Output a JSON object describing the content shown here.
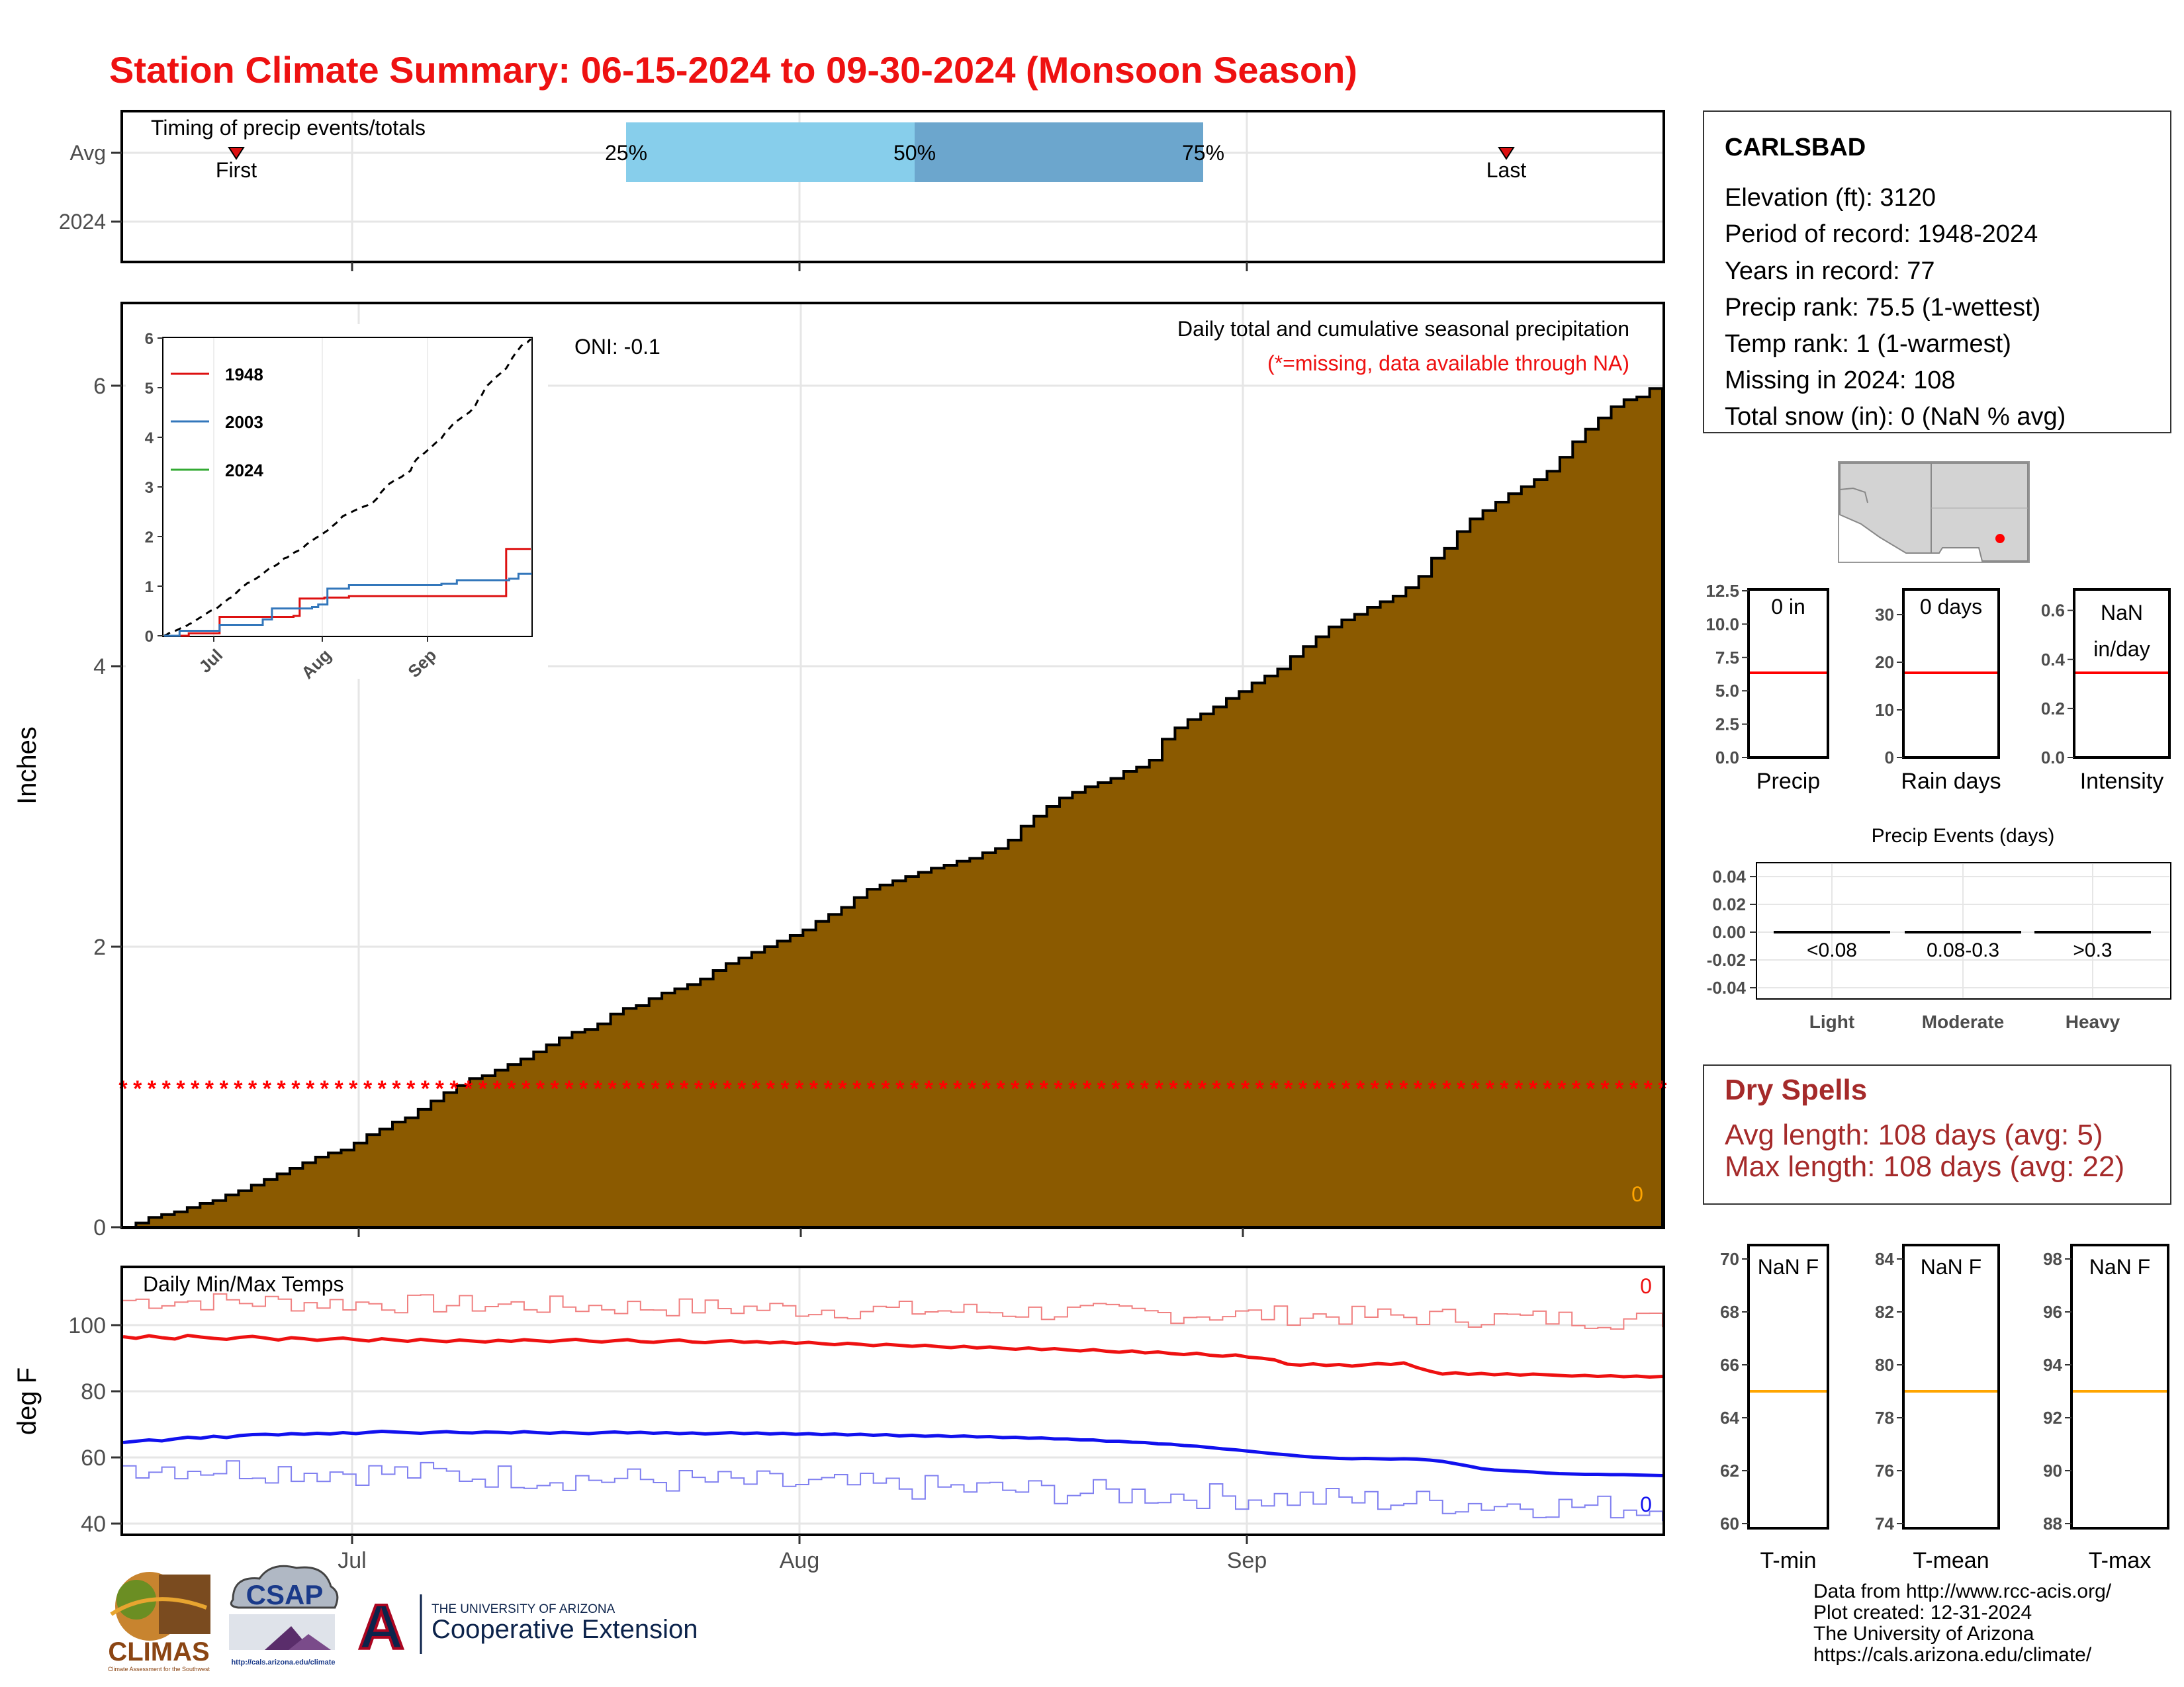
{
  "title": "Station Climate Summary: 06-15-2024 to 09-30-2024 (Monsoon Season)",
  "colors": {
    "title": "#ee1111",
    "precip_fill": "#8B5A00",
    "quartile_light": "#87CEEB",
    "quartile_dark": "#6CA6CD",
    "max_temp": "#ee1111",
    "min_temp": "#1111ee",
    "dry_spells": "#a52a2a",
    "climo_line": "#ff0000",
    "temp_climo_line": "#FFA500",
    "missing_marker": "#ff0000"
  },
  "timing": {
    "label": "Timing of precip events/totals",
    "rows": [
      "Avg",
      "2024"
    ],
    "first_label": "First",
    "last_label": "Last",
    "q25": "25%",
    "q50": "50%",
    "q75": "75%"
  },
  "x_axis": {
    "ticks": [
      "Jul",
      "Aug",
      "Sep"
    ]
  },
  "precip_panel": {
    "ylabel": "Inches",
    "yticks": [
      "0",
      "2",
      "4",
      "6"
    ],
    "oni": "ONI: -0.1",
    "caption": "Daily total and cumulative seasonal precipitation",
    "missing_note": "(*=missing, data available through NA)",
    "current_total": "0",
    "missing_marker": "*"
  },
  "inset": {
    "yticks": [
      "0",
      "1",
      "2",
      "3",
      "4",
      "5",
      "6"
    ],
    "xticks": [
      "Jul",
      "Aug",
      "Sep"
    ],
    "legend": [
      {
        "label": "1948",
        "color": "#dd1111"
      },
      {
        "label": "2003",
        "color": "#3377bb"
      },
      {
        "label": "2024",
        "color": "#33aa33"
      }
    ]
  },
  "temp_panel": {
    "ylabel": "deg F",
    "title": "Daily Min/Max Temps",
    "yticks": [
      "40",
      "60",
      "80",
      "100"
    ],
    "max_marker": "0",
    "min_marker": "0"
  },
  "station": {
    "name": "CARLSBAD",
    "lines": [
      "Elevation (ft): 3120",
      "Period of record: 1948-2024",
      "Years in record: 77",
      "Precip rank: 75.5 (1-wettest)",
      "Temp rank: 1 (1-warmest)",
      "Missing in 2024: 108",
      "Total snow (in): 0 (NaN % avg)"
    ]
  },
  "mini_bars": [
    {
      "label": "Precip",
      "value_label": "0 in",
      "ticks": [
        "0.0",
        "2.5",
        "5.0",
        "7.5",
        "10.0",
        "12.5"
      ],
      "climo": 6.3,
      "ymax": 12.5
    },
    {
      "label": "Rain days",
      "value_label": "0 days",
      "ticks": [
        "0",
        "10",
        "20",
        "30"
      ],
      "climo": 18.2,
      "ymax": 35
    },
    {
      "label": "Intensity",
      "value_label": "NaN",
      "value_label2": "in/day",
      "ticks": [
        "0.0",
        "0.2",
        "0.4",
        "0.6"
      ],
      "climo": 0.35,
      "ymax": 0.68
    }
  ],
  "precip_events": {
    "title": "Precip Events (days)",
    "yticks": [
      "0.04",
      "0.02",
      "0.00",
      "-0.02",
      "-0.04"
    ],
    "bins": [
      "<0.08",
      "0.08-0.3",
      ">0.3"
    ],
    "categories": [
      "Light",
      "Moderate",
      "Heavy"
    ],
    "values": [
      0,
      0,
      0
    ]
  },
  "dry_spells": {
    "title": "Dry Spells",
    "avg": "Avg length: 108 days (avg: 5)",
    "max": "Max length: 108 days (avg: 22)"
  },
  "temp_bars": [
    {
      "label": "T-min",
      "value_label": "NaN F",
      "ticks": [
        "60",
        "62",
        "64",
        "66",
        "68",
        "70"
      ],
      "min": 60,
      "max": 70,
      "climo": 65.2
    },
    {
      "label": "T-mean",
      "value_label": "NaN F",
      "ticks": [
        "74",
        "76",
        "78",
        "80",
        "82",
        "84"
      ],
      "min": 74,
      "max": 84,
      "climo": 79.2
    },
    {
      "label": "T-max",
      "value_label": "NaN F",
      "ticks": [
        "88",
        "90",
        "92",
        "94",
        "96",
        "98"
      ],
      "min": 88,
      "max": 98,
      "climo": 93.2
    }
  ],
  "footer": [
    "Data from http://www.rcc-acis.org/",
    "Plot created: 12-31-2024",
    "The University of Arizona",
    "https://cals.arizona.edu/climate/"
  ],
  "logos": {
    "climas": "CLIMAS",
    "climas_sub": "Climate Assessment for the Southwest",
    "csap": "CSAP",
    "csap_url": "http://cals.arizona.edu/climate",
    "ua_letter": "A",
    "ua_line1": "THE UNIVERSITY OF ARIZONA",
    "ua_line2": "Cooperative Extension"
  },
  "chart_data": {
    "type": "area",
    "title": "Daily total and cumulative seasonal precipitation",
    "ylabel": "Inches",
    "ylim": [
      0,
      6.5
    ],
    "x_start": "06-15-2024",
    "x_end": "09-30-2024",
    "cumulative_climatology_in": [
      0.0,
      0.03,
      0.07,
      0.09,
      0.11,
      0.14,
      0.17,
      0.19,
      0.23,
      0.26,
      0.3,
      0.34,
      0.38,
      0.42,
      0.46,
      0.5,
      0.53,
      0.55,
      0.6,
      0.66,
      0.7,
      0.75,
      0.78,
      0.84,
      0.9,
      0.96,
      1.01,
      1.06,
      1.08,
      1.12,
      1.16,
      1.2,
      1.25,
      1.3,
      1.35,
      1.39,
      1.41,
      1.45,
      1.52,
      1.56,
      1.58,
      1.63,
      1.67,
      1.7,
      1.73,
      1.77,
      1.83,
      1.88,
      1.92,
      1.96,
      2.0,
      2.04,
      2.08,
      2.12,
      2.18,
      2.23,
      2.28,
      2.35,
      2.41,
      2.44,
      2.47,
      2.5,
      2.53,
      2.56,
      2.58,
      2.61,
      2.63,
      2.67,
      2.7,
      2.76,
      2.86,
      2.93,
      3.0,
      3.06,
      3.1,
      3.14,
      3.17,
      3.2,
      3.25,
      3.28,
      3.33,
      3.48,
      3.56,
      3.62,
      3.66,
      3.71,
      3.77,
      3.82,
      3.88,
      3.93,
      3.98,
      4.07,
      4.14,
      4.21,
      4.28,
      4.33,
      4.37,
      4.42,
      4.46,
      4.5,
      4.56,
      4.64,
      4.77,
      4.84,
      4.96,
      5.05,
      5.11,
      5.17,
      5.23,
      5.28,
      5.33,
      5.39,
      5.49,
      5.6,
      5.69,
      5.77,
      5.85,
      5.9,
      5.92,
      5.98
    ],
    "series_2024": {
      "name": "2024",
      "total_in": 0,
      "status": "missing"
    },
    "temperature": {
      "ylabel": "deg F",
      "ylim": [
        38,
        115
      ],
      "max_climatology_F": [
        96.5,
        96.0,
        96.8,
        96.2,
        95.8,
        96.9,
        96.4,
        96.0,
        95.7,
        96.3,
        96.6,
        96.1,
        95.5,
        96.2,
        95.9,
        95.4,
        95.8,
        96.1,
        95.6,
        95.2,
        95.9,
        95.5,
        95.1,
        95.7,
        95.3,
        95.0,
        95.5,
        95.2,
        94.9,
        95.4,
        95.1,
        95.6,
        95.3,
        95.0,
        95.4,
        95.7,
        95.2,
        94.9,
        95.3,
        95.6,
        95.0,
        94.8,
        95.2,
        95.5,
        94.9,
        94.7,
        95.1,
        95.3,
        94.8,
        95.0,
        94.6,
        94.9,
        94.5,
        94.8,
        94.4,
        94.1,
        94.5,
        94.2,
        93.8,
        94.2,
        93.9,
        93.6,
        93.9,
        93.5,
        93.2,
        93.6,
        93.1,
        93.4,
        93.0,
        92.7,
        93.1,
        92.6,
        92.9,
        92.5,
        92.2,
        92.6,
        92.1,
        91.8,
        92.2,
        91.6,
        91.9,
        91.4,
        91.1,
        91.5,
        90.9,
        90.6,
        91.0,
        90.3,
        90.0,
        89.5,
        88.2,
        87.9,
        88.3,
        87.8,
        88.1,
        87.6,
        88.0,
        88.4,
        88.1,
        88.6,
        87.2,
        86.1,
        85.2,
        85.6,
        85.1,
        85.4,
        85.0,
        85.3,
        84.9,
        85.2,
        85.0,
        84.8,
        84.6,
        84.8,
        84.5,
        84.7,
        84.4,
        84.6,
        84.3,
        84.5
      ],
      "min_climatology_F": [
        64.5,
        64.9,
        65.3,
        65.0,
        65.6,
        66.1,
        65.8,
        66.4,
        66.0,
        66.6,
        66.9,
        67.0,
        66.8,
        67.2,
        67.0,
        67.3,
        67.1,
        67.5,
        67.2,
        67.6,
        67.9,
        67.7,
        67.5,
        67.3,
        67.6,
        67.8,
        67.5,
        67.4,
        67.7,
        67.6,
        67.4,
        67.8,
        67.5,
        67.3,
        67.6,
        67.4,
        67.2,
        67.5,
        67.7,
        67.4,
        67.6,
        67.3,
        67.5,
        67.2,
        67.4,
        67.1,
        67.3,
        67.5,
        67.2,
        67.4,
        67.1,
        67.3,
        67.0,
        67.2,
        66.9,
        67.1,
        66.8,
        67.0,
        66.7,
        66.9,
        66.5,
        66.7,
        66.4,
        66.6,
        66.3,
        66.5,
        66.2,
        66.3,
        66.0,
        66.1,
        65.8,
        65.9,
        65.6,
        65.6,
        65.3,
        65.3,
        64.9,
        64.9,
        64.6,
        64.5,
        64.1,
        64.0,
        63.6,
        63.4,
        63.0,
        62.6,
        62.3,
        61.9,
        61.5,
        61.1,
        60.8,
        60.4,
        60.1,
        59.9,
        59.7,
        59.6,
        59.7,
        59.6,
        59.5,
        59.6,
        59.5,
        59.2,
        58.8,
        58.1,
        57.4,
        56.6,
        56.2,
        56.0,
        55.8,
        55.6,
        55.3,
        55.1,
        55.0,
        54.9,
        54.9,
        54.8,
        54.8,
        54.7,
        54.6,
        54.5
      ]
    }
  }
}
